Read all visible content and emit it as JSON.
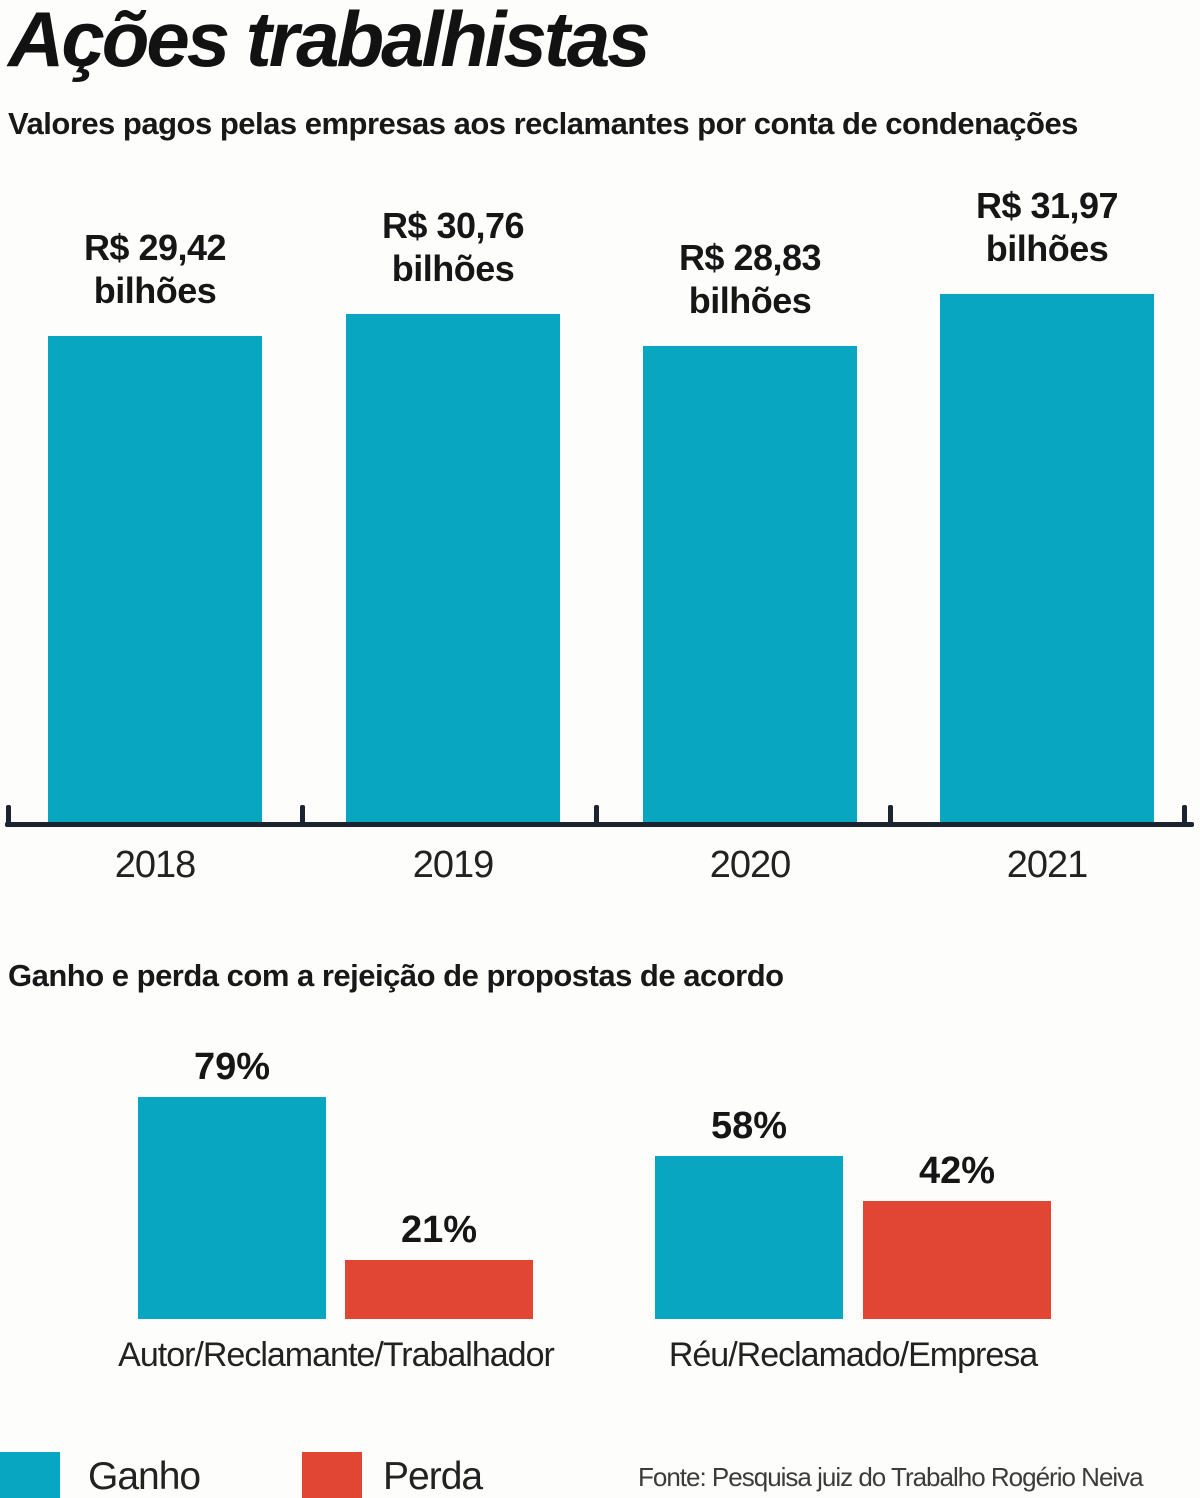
{
  "page": {
    "title": "Ações trabalhistas",
    "subtitle": "Valores pagos pelas empresas aos reclamantes por conta de condenações"
  },
  "colors": {
    "gain": "#09a6c2",
    "loss": "#e14533",
    "axis": "#1b2430",
    "text": "#1a1a1a"
  },
  "chart_data": [
    {
      "type": "bar",
      "title": "Valores pagos pelas empresas aos reclamantes por conta de condenações",
      "unit": "R$ bilhões",
      "categories": [
        "2018",
        "2019",
        "2020",
        "2021"
      ],
      "values": [
        29.42,
        30.76,
        28.83,
        31.97
      ],
      "bar_labels": [
        [
          "R$ 29,42",
          "bilhões"
        ],
        [
          "R$ 30,76",
          "bilhões"
        ],
        [
          "R$ 28,83",
          "bilhões"
        ],
        [
          "R$ 31,97",
          "bilhões"
        ]
      ],
      "ylim": [
        0,
        32
      ],
      "grid": false,
      "legend_position": "none",
      "bar_color": "#09a6c2",
      "axis_tick_count": 5
    },
    {
      "type": "bar",
      "title": "Ganho e perda com a rejeição de propostas de acordo",
      "unit": "%",
      "categories": [
        "Autor/Reclamante/Trabalhador",
        "Réu/Reclamado/Empresa"
      ],
      "series": [
        {
          "name": "Ganho",
          "color": "#09a6c2",
          "values": [
            79,
            58
          ],
          "labels": [
            "79%",
            "58%"
          ]
        },
        {
          "name": "Perda",
          "color": "#e14533",
          "values": [
            21,
            42
          ],
          "labels": [
            "21%",
            "42%"
          ]
        }
      ],
      "ylim": [
        0,
        100
      ],
      "grid": false,
      "legend_position": "bottom-left"
    }
  ],
  "legend": {
    "gain_label": "Ganho",
    "loss_label": "Perda"
  },
  "footer": {
    "source": "Fonte: Pesquisa juiz do Trabalho Rogério Neiva"
  }
}
